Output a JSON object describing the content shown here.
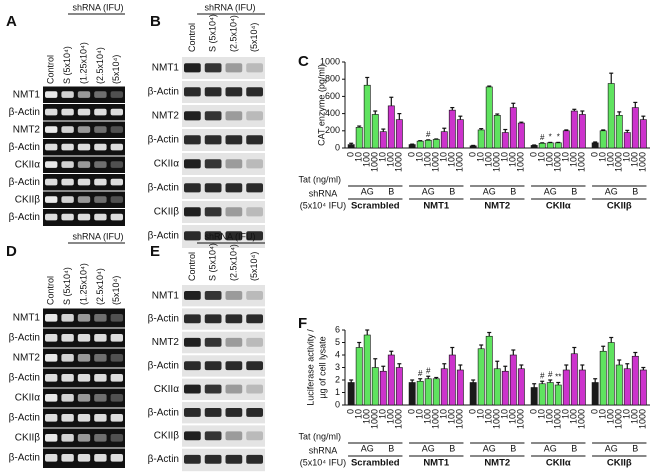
{
  "gels": [
    {
      "letter": "A",
      "header": "shRNA (IFU)",
      "lanes": [
        "Control",
        "S (5x10⁴)",
        "(1.25x10⁴)",
        "(2.5x10⁴)",
        "(5x10⁴)"
      ],
      "rows": [
        "NMT1",
        "β-Actin",
        "NMT2",
        "β-Actin",
        "CKIIα",
        "β-Actin",
        "CKIIβ",
        "β-Actin"
      ]
    },
    {
      "letter": "B",
      "header": "shRNA (IFU)",
      "lanes": [
        "Control",
        "S (5x10⁴)",
        "(2.5x10⁴)",
        "(5x10⁴)"
      ],
      "rows": [
        "NMT1",
        "β-Actin",
        "NMT2",
        "β-Actin",
        "CKIIα",
        "β-Actin",
        "CKIIβ",
        "β-Actin"
      ]
    },
    {
      "letter": "D",
      "header": "shRNA (IFU)",
      "lanes": [
        "Control",
        "S (5x10⁴)",
        "(1.25x10⁴)",
        "(2.5x10⁴)",
        "(5x10⁴)"
      ],
      "rows": [
        "NMT1",
        "β-Actin",
        "NMT2",
        "β-Actin",
        "CKIIα",
        "β-Actin",
        "CKIIβ",
        "β-Actin"
      ]
    },
    {
      "letter": "E",
      "header": "shRNA (IFU)",
      "lanes": [
        "Control",
        "S (5x10⁴)",
        "(2.5x10⁴)",
        "(5x10⁴)"
      ],
      "rows": [
        "NMT1",
        "β-Actin",
        "NMT2",
        "β-Actin",
        "CKIIα",
        "β-Actin",
        "CKIIβ",
        "β-Actin"
      ]
    }
  ],
  "chart_data": [
    {
      "type": "bar",
      "letter": "C",
      "ylabel": [
        "CAT enzyme (pg/ml)"
      ],
      "ylim": [
        0,
        1000
      ],
      "yticks": [
        0,
        200,
        400,
        600,
        800,
        1000
      ],
      "colors": [
        "#1a1a1a",
        "#5fe35f",
        "#5fe35f",
        "#5fe35f",
        "#cc33cc",
        "#cc33cc",
        "#cc33cc"
      ],
      "tat_label": "Tat (ng/ml)",
      "shrna_label": [
        "shRNA",
        "(5x10⁴ IFU)"
      ],
      "ag_label": "AG",
      "b_label": "B",
      "groups": [
        {
          "name": "Scrambled",
          "tat": [
            0,
            10,
            100,
            1000,
            10,
            100,
            1000
          ],
          "values": [
            40,
            240,
            730,
            390,
            190,
            490,
            330
          ],
          "errors": [
            15,
            15,
            90,
            40,
            30,
            100,
            70
          ],
          "annotations": [
            null,
            null,
            null,
            null,
            null,
            null,
            null
          ]
        },
        {
          "name": "NMT1",
          "tat": [
            0,
            10,
            100,
            1000,
            10,
            100,
            1000
          ],
          "values": [
            40,
            80,
            90,
            100,
            190,
            440,
            330
          ],
          "errors": [
            5,
            5,
            5,
            5,
            40,
            30,
            40
          ],
          "annotations": [
            null,
            null,
            "#",
            null,
            null,
            null,
            null
          ]
        },
        {
          "name": "NMT2",
          "tat": [
            0,
            10,
            100,
            1000,
            10,
            100,
            1000
          ],
          "values": [
            25,
            210,
            710,
            380,
            180,
            470,
            290
          ],
          "errors": [
            5,
            15,
            10,
            15,
            35,
            50,
            10
          ],
          "annotations": [
            null,
            null,
            null,
            null,
            null,
            null,
            null
          ]
        },
        {
          "name": "CKIIα",
          "tat": [
            0,
            10,
            100,
            1000,
            10,
            100,
            1000
          ],
          "values": [
            30,
            55,
            60,
            60,
            200,
            430,
            390
          ],
          "errors": [
            5,
            5,
            5,
            5,
            10,
            20,
            40
          ],
          "annotations": [
            null,
            "#",
            "*",
            "*",
            null,
            null,
            null
          ]
        },
        {
          "name": "CKIIβ",
          "tat": [
            0,
            10,
            100,
            1000,
            10,
            100,
            1000
          ],
          "values": [
            60,
            200,
            750,
            380,
            180,
            470,
            330
          ],
          "errors": [
            10,
            10,
            120,
            40,
            25,
            60,
            40
          ],
          "annotations": [
            null,
            null,
            null,
            null,
            null,
            null,
            null
          ]
        }
      ]
    },
    {
      "type": "bar",
      "letter": "F",
      "ylabel": [
        "Luciferase activity /",
        "µg of cell lysate"
      ],
      "ylim": [
        0,
        6
      ],
      "yticks": [
        0,
        1,
        2,
        3,
        4,
        5,
        6
      ],
      "colors": [
        "#1a1a1a",
        "#5fe35f",
        "#5fe35f",
        "#5fe35f",
        "#cc33cc",
        "#cc33cc",
        "#cc33cc"
      ],
      "tat_label": "Tat (ng/ml)",
      "shrna_label": [
        "shRNA",
        "(5x10⁴ IFU)"
      ],
      "ag_label": "AG",
      "b_label": "B",
      "groups": [
        {
          "name": "Scrambled",
          "tat": [
            0,
            10,
            100,
            1000,
            10,
            100,
            1000
          ],
          "values": [
            1.8,
            4.6,
            5.6,
            3.0,
            2.7,
            4.0,
            3.0
          ],
          "errors": [
            0.2,
            0.4,
            0.4,
            0.7,
            0.4,
            0.3,
            0.3
          ],
          "annotations": [
            null,
            null,
            null,
            null,
            null,
            null,
            null
          ]
        },
        {
          "name": "NMT1",
          "tat": [
            0,
            10,
            100,
            1000,
            10,
            100,
            1000
          ],
          "values": [
            1.8,
            1.9,
            2.1,
            2.1,
            2.9,
            4.0,
            2.8
          ],
          "errors": [
            0.2,
            0.2,
            0.2,
            0.1,
            0.4,
            0.6,
            0.4
          ],
          "annotations": [
            null,
            "#",
            "#",
            null,
            null,
            null,
            null
          ]
        },
        {
          "name": "NMT2",
          "tat": [
            0,
            10,
            100,
            1000,
            10,
            100,
            1000
          ],
          "values": [
            1.8,
            4.5,
            5.5,
            2.9,
            2.7,
            4.0,
            2.9
          ],
          "errors": [
            0.2,
            0.3,
            0.3,
            0.6,
            0.4,
            0.4,
            0.3
          ],
          "annotations": [
            null,
            null,
            null,
            null,
            null,
            null,
            null
          ]
        },
        {
          "name": "CKIIα",
          "tat": [
            0,
            10,
            100,
            1000,
            10,
            100,
            1000
          ],
          "values": [
            1.4,
            1.7,
            1.8,
            1.6,
            2.8,
            4.1,
            2.8
          ],
          "errors": [
            0.3,
            0.2,
            0.2,
            0.2,
            0.4,
            0.5,
            0.4
          ],
          "annotations": [
            null,
            "#",
            "#",
            "**",
            null,
            null,
            null
          ]
        },
        {
          "name": "CKIIβ",
          "tat": [
            0,
            10,
            100,
            1000,
            10,
            100,
            1000
          ],
          "values": [
            1.8,
            4.3,
            5.0,
            3.2,
            2.9,
            3.9,
            2.8
          ],
          "errors": [
            0.3,
            0.4,
            0.4,
            0.4,
            0.4,
            0.3,
            0.2
          ],
          "annotations": [
            null,
            null,
            null,
            null,
            null,
            null,
            null
          ]
        }
      ]
    }
  ]
}
